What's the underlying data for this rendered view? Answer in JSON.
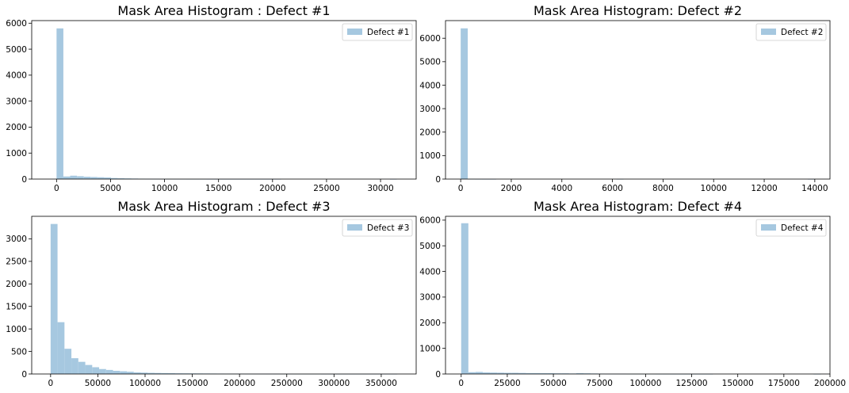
{
  "colors": {
    "bar": "#a6c8e0",
    "axis": "#000000",
    "legend_border": "#cccccc"
  },
  "chart_data": [
    {
      "type": "histogram",
      "title": "Mask Area Histogram : Defect #1",
      "legend": [
        "Defect #1"
      ],
      "legend_position": "top-right",
      "grid": false,
      "xlim": [
        -2300,
        33300
      ],
      "ylim": [
        0,
        6100
      ],
      "xticks": [
        0,
        5000,
        10000,
        15000,
        20000,
        25000,
        30000
      ],
      "yticks": [
        0,
        1000,
        2000,
        3000,
        4000,
        5000,
        6000
      ],
      "bin_start": 0,
      "bin_width": 630,
      "counts": [
        5800,
        100,
        130,
        110,
        90,
        80,
        70,
        60,
        40,
        30,
        25,
        20,
        15,
        10,
        8,
        6,
        5,
        4,
        3,
        2,
        2,
        2,
        1,
        1,
        1,
        1,
        1,
        1,
        1,
        1,
        1,
        1,
        1,
        0,
        0,
        0,
        0,
        0,
        0,
        0,
        0,
        0,
        0,
        0,
        0,
        0,
        0,
        0,
        0,
        1
      ]
    },
    {
      "type": "histogram",
      "title": "Mask Area Histogram: Defect #2",
      "legend": [
        "Defect #2"
      ],
      "legend_position": "top-right",
      "grid": false,
      "xlim": [
        -600,
        14600
      ],
      "ylim": [
        0,
        6750
      ],
      "xticks": [
        0,
        2000,
        4000,
        6000,
        8000,
        10000,
        12000,
        14000
      ],
      "yticks": [
        0,
        1000,
        2000,
        3000,
        4000,
        5000,
        6000
      ],
      "bin_start": 0,
      "bin_width": 280,
      "counts": [
        6420,
        5,
        2,
        1,
        1,
        0,
        0,
        0,
        0,
        0,
        0,
        0,
        0,
        0,
        0,
        0,
        0,
        0,
        0,
        0,
        0,
        0,
        2,
        0,
        0,
        0,
        0,
        0,
        0,
        0,
        0,
        0,
        0,
        0,
        0,
        0,
        0,
        0,
        0,
        0,
        0,
        0,
        0,
        0,
        0,
        0,
        0,
        0,
        0,
        1
      ]
    },
    {
      "type": "histogram",
      "title": "Mask Area Histogram : Defect #3",
      "legend": [
        "Defect #3"
      ],
      "legend_position": "top-right",
      "grid": false,
      "xlim": [
        -20000,
        387000
      ],
      "ylim": [
        0,
        3500
      ],
      "xticks": [
        0,
        50000,
        100000,
        150000,
        200000,
        250000,
        300000,
        350000
      ],
      "yticks": [
        0,
        500,
        1000,
        1500,
        2000,
        2500,
        3000
      ],
      "bin_start": 0,
      "bin_width": 7340,
      "counts": [
        3330,
        1150,
        560,
        350,
        270,
        200,
        150,
        110,
        90,
        70,
        60,
        50,
        35,
        30,
        25,
        22,
        20,
        18,
        15,
        14,
        13,
        12,
        11,
        10,
        9,
        8,
        8,
        7,
        6,
        5,
        5,
        4,
        4,
        3,
        3,
        2,
        2,
        2,
        2,
        1,
        1,
        1,
        1,
        1,
        1,
        1,
        1,
        1,
        1,
        1
      ]
    },
    {
      "type": "histogram",
      "title": "Mask Area Histogram: Defect #4",
      "legend": [
        "Defect #4"
      ],
      "legend_position": "top-right",
      "grid": false,
      "xlim": [
        -8500,
        200000
      ],
      "ylim": [
        0,
        6150
      ],
      "xticks": [
        0,
        25000,
        50000,
        75000,
        100000,
        125000,
        150000,
        175000,
        200000
      ],
      "yticks": [
        0,
        1000,
        2000,
        3000,
        4000,
        5000,
        6000
      ],
      "bin_start": 0,
      "bin_width": 3900,
      "counts": [
        5880,
        70,
        80,
        60,
        55,
        50,
        45,
        45,
        40,
        35,
        35,
        30,
        30,
        25,
        25,
        20,
        30,
        25,
        20,
        15,
        10,
        10,
        8,
        5,
        5,
        4,
        3,
        2,
        2,
        1,
        1,
        1,
        1,
        1,
        1,
        0,
        0,
        0,
        0,
        0,
        0,
        0,
        0,
        0,
        0,
        0,
        0,
        0,
        0,
        1
      ]
    }
  ]
}
